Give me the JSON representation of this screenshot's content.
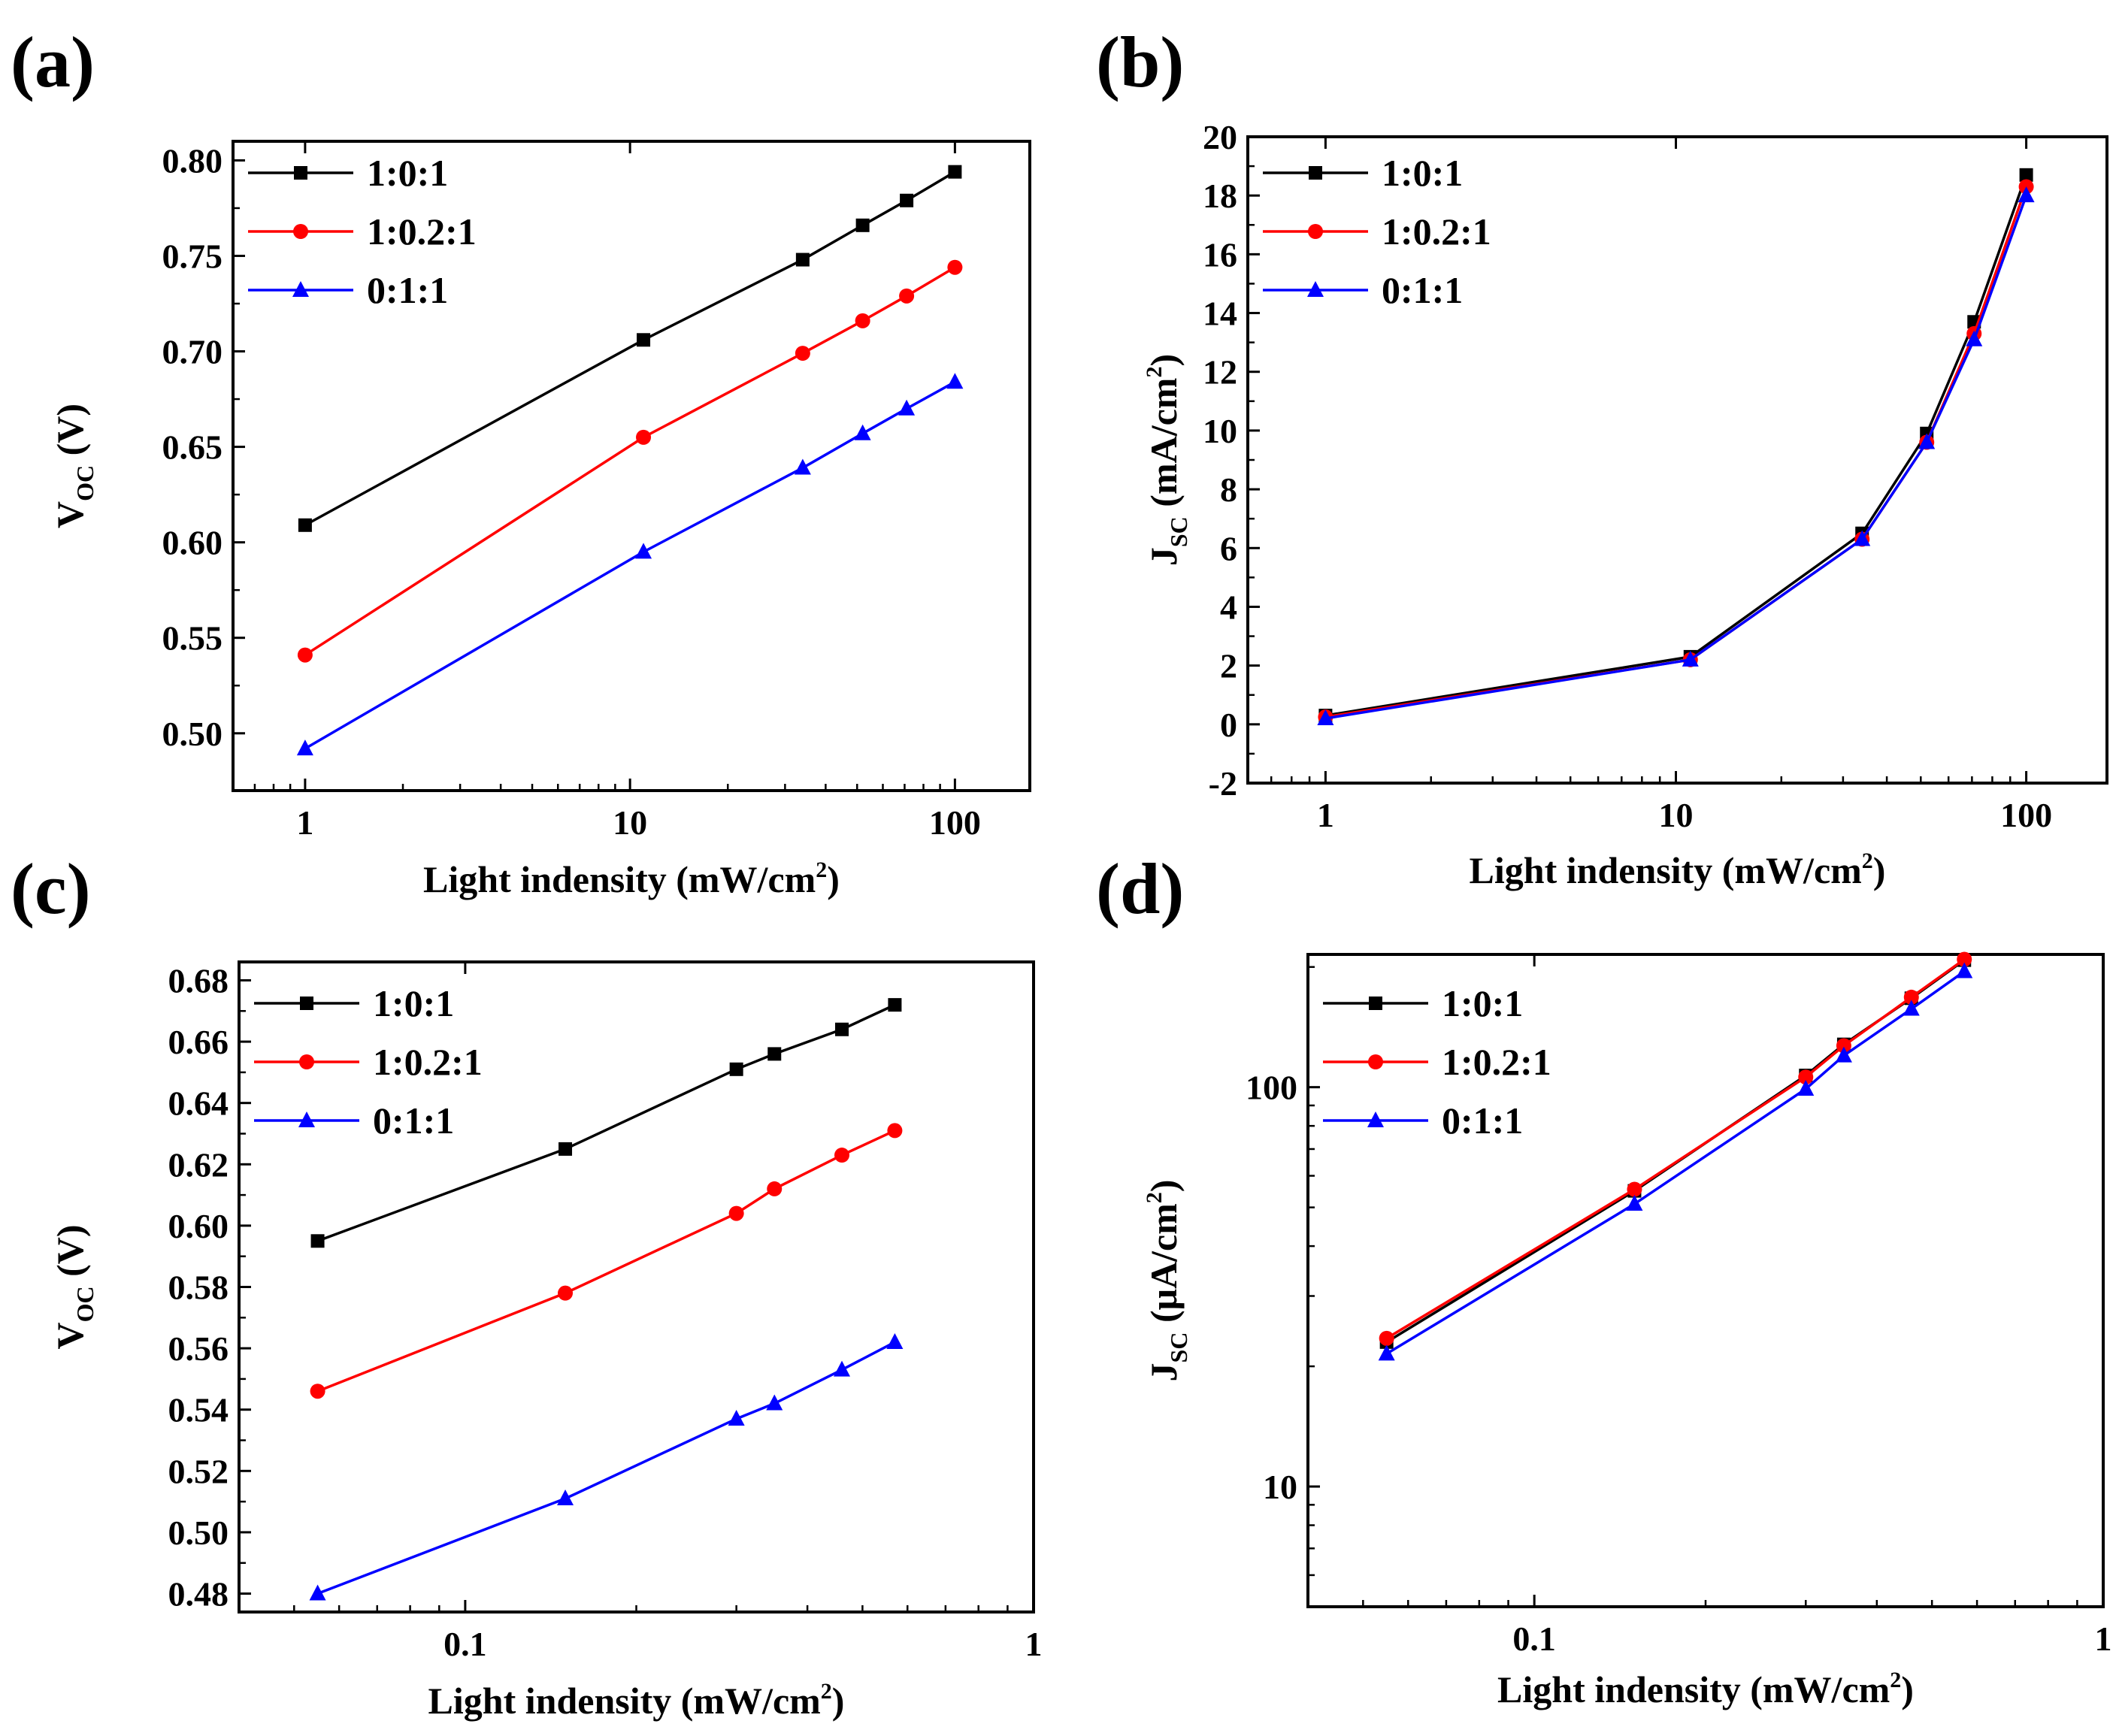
{
  "figure": {
    "panels": [
      {
        "label": "(a)",
        "xlabel": "Light indensity (mW/cm",
        "xlabel_sup": "2",
        "xlabel_end": ")",
        "ylabel_main": "V",
        "ylabel_sub": "OC",
        "ylabel_unit": " (V)",
        "x_ticks": [
          1,
          10,
          100
        ],
        "x_tick_labels": [
          "1",
          "10",
          "100"
        ],
        "y_ticks": [
          0.5,
          0.55,
          0.6,
          0.65,
          0.7,
          0.75,
          0.8
        ],
        "y_tick_labels": [
          "0.50",
          "0.55",
          "0.60",
          "0.65",
          "0.70",
          "0.75",
          "0.80"
        ]
      },
      {
        "label": "(b)",
        "xlabel": "Light indensity (mW/cm",
        "xlabel_sup": "2",
        "xlabel_end": ")",
        "ylabel_main": "J",
        "ylabel_sub": "SC",
        "ylabel_unit": " (mA/cm",
        "ylabel_sup": "2",
        "ylabel_end": ")",
        "x_ticks": [
          1,
          10,
          100
        ],
        "x_tick_labels": [
          "1",
          "10",
          "100"
        ],
        "y_ticks": [
          -2,
          0,
          2,
          4,
          6,
          8,
          10,
          12,
          14,
          16,
          18,
          20
        ],
        "y_tick_labels": [
          "-2",
          "0",
          "2",
          "4",
          "6",
          "8",
          "10",
          "12",
          "14",
          "16",
          "18",
          "20"
        ]
      },
      {
        "label": "(c)",
        "xlabel": "Light indensity (mW/cm",
        "xlabel_sup": "2",
        "xlabel_end": ")",
        "ylabel_main": "V",
        "ylabel_sub": "OC",
        "ylabel_unit": " (V)",
        "x_ticks": [
          0.1,
          1
        ],
        "x_tick_labels": [
          "0.1",
          "1"
        ],
        "y_ticks": [
          0.48,
          0.5,
          0.52,
          0.54,
          0.56,
          0.58,
          0.6,
          0.62,
          0.64,
          0.66,
          0.68
        ],
        "y_tick_labels": [
          "0.48",
          "0.50",
          "0.52",
          "0.54",
          "0.56",
          "0.58",
          "0.60",
          "0.62",
          "0.64",
          "0.66",
          "0.68"
        ]
      },
      {
        "label": "(d)",
        "xlabel": "Light indensity (mW/cm",
        "xlabel_sup": "2",
        "xlabel_end": ")",
        "ylabel_main": "J",
        "ylabel_sub": "SC",
        "ylabel_unit": " (μA/cm",
        "ylabel_sup": "2",
        "ylabel_end": ")",
        "x_ticks": [
          0.1,
          1
        ],
        "x_tick_labels": [
          "0.1",
          "1"
        ],
        "y_ticks": [
          10,
          100
        ],
        "y_tick_labels": [
          "10",
          "100"
        ]
      }
    ],
    "legend_labels": [
      "1:0:1",
      "1:0.2:1",
      "0:1:1"
    ],
    "series_colors": [
      "#000000",
      "#ff0000",
      "#0000ff"
    ],
    "series_markers": [
      "square",
      "circle",
      "triangle"
    ]
  },
  "chart_data": [
    {
      "panel": "(a)",
      "type": "line",
      "title": "",
      "xlabel": "Light indensity (mW/cm2)",
      "ylabel": "VOC (V)",
      "xscale": "log",
      "xlim": [
        0.6,
        170
      ],
      "ylim": [
        0.47,
        0.81
      ],
      "legend_position": "top-left",
      "x": [
        1,
        11,
        34,
        52,
        71,
        100
      ],
      "series": [
        {
          "name": "1:0:1",
          "values": [
            0.609,
            0.706,
            0.748,
            0.766,
            0.779,
            0.794
          ]
        },
        {
          "name": "1:0.2:1",
          "values": [
            0.541,
            0.655,
            0.699,
            0.716,
            0.729,
            0.744
          ]
        },
        {
          "name": "0:1:1",
          "values": [
            0.492,
            0.595,
            0.639,
            0.657,
            0.67,
            0.684
          ]
        }
      ]
    },
    {
      "panel": "(b)",
      "type": "line",
      "title": "",
      "xlabel": "Light indensity (mW/cm2)",
      "ylabel": "JSC (mA/cm2)",
      "xscale": "log",
      "xlim": [
        0.6,
        170
      ],
      "ylim": [
        -2,
        20
      ],
      "legend_position": "top-left",
      "x": [
        1,
        11,
        34,
        52,
        71,
        100
      ],
      "series": [
        {
          "name": "1:0:1",
          "values": [
            0.3,
            2.3,
            6.5,
            9.9,
            13.7,
            18.7
          ]
        },
        {
          "name": "1:0.2:1",
          "values": [
            0.25,
            2.2,
            6.3,
            9.6,
            13.3,
            18.3
          ]
        },
        {
          "name": "0:1:1",
          "values": [
            0.2,
            2.2,
            6.3,
            9.6,
            13.1,
            18.0
          ]
        }
      ]
    },
    {
      "panel": "(c)",
      "type": "line",
      "title": "",
      "xlabel": "Light indensity (mW/cm2)",
      "ylabel": "VOC (V)",
      "xscale": "log",
      "xlim": [
        0.04,
        1.0
      ],
      "ylim": [
        0.474,
        0.686
      ],
      "legend_position": "top-left",
      "x": [
        0.055,
        0.15,
        0.3,
        0.35,
        0.46,
        0.57
      ],
      "series": [
        {
          "name": "1:0:1",
          "values": [
            0.595,
            0.625,
            0.651,
            0.656,
            0.664,
            0.672
          ]
        },
        {
          "name": "1:0.2:1",
          "values": [
            0.546,
            0.578,
            0.604,
            0.612,
            0.623,
            0.631
          ]
        },
        {
          "name": "0:1:1",
          "values": [
            0.48,
            0.511,
            0.537,
            0.542,
            0.553,
            0.562
          ]
        }
      ]
    },
    {
      "panel": "(d)",
      "type": "line",
      "title": "",
      "xlabel": "Light indensity (mW/cm2)",
      "ylabel": "JSC (μA/cm2)",
      "xscale": "log",
      "yscale": "log",
      "xlim": [
        0.04,
        1.0
      ],
      "ylim": [
        5,
        215
      ],
      "legend_position": "top-left",
      "x": [
        0.055,
        0.15,
        0.3,
        0.35,
        0.46,
        0.57
      ],
      "series": [
        {
          "name": "1:0:1",
          "values": [
            23,
            55,
            107,
            128,
            167,
            208
          ]
        },
        {
          "name": "1:0.2:1",
          "values": [
            23.5,
            55.5,
            106,
            127,
            168,
            209
          ]
        },
        {
          "name": "0:1:1",
          "values": [
            21.5,
            51,
            99,
            120,
            157,
            195
          ]
        }
      ]
    }
  ]
}
